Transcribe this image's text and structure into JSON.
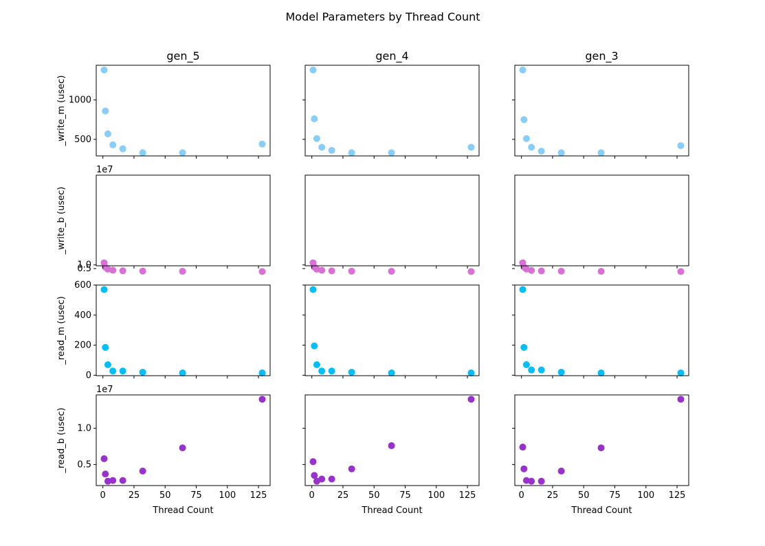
{
  "suptitle": "Model Parameters by Thread Count",
  "x_label": "Thread Count",
  "columns": [
    "gen_5",
    "gen_4",
    "gen_3"
  ],
  "row_labels": [
    "_write_m (usec)",
    "_write_b (usec)",
    "_read_m (usec)",
    "_read_b (usec)"
  ],
  "row_colors": [
    "#87cefa",
    "#da70d6",
    "#00bfff",
    "#9932cc"
  ],
  "x_ticks": [
    0,
    25,
    50,
    75,
    100,
    125
  ],
  "x_lim": [
    -5.35,
    134.35
  ],
  "rows": [
    {
      "ylim": [
        290,
        1440
      ],
      "ticks": [
        500,
        1000
      ],
      "tick_labels": [
        "500",
        "1000"
      ],
      "offset": ""
    },
    {
      "ylim": [
        8800000.0,
        132000000.0
      ],
      "ticks": [
        5000000.0,
        10000000.0
      ],
      "tick_labels": [
        "0.5",
        "1.0"
      ],
      "offset": "1e7"
    },
    {
      "ylim": [
        -3,
        600
      ],
      "ticks": [
        0,
        200,
        400,
        600
      ],
      "tick_labels": [
        "0",
        "200",
        "400",
        "600"
      ],
      "offset": ""
    },
    {
      "ylim": [
        2100000.0,
        14600000.0
      ],
      "ticks": [
        5000000.0,
        10000000.0
      ],
      "tick_labels": [
        "0.5",
        "1.0"
      ],
      "offset": "1e7"
    }
  ],
  "chart_data": [
    {
      "type": "scatter",
      "title": "gen_5",
      "row": "_write_m (usec)",
      "color": "#87cefa",
      "x": [
        1,
        2,
        4,
        8,
        16,
        32,
        64,
        128
      ],
      "y": [
        1380,
        860,
        570,
        430,
        380,
        330,
        330,
        440
      ]
    },
    {
      "type": "scatter",
      "title": "gen_4",
      "row": "_write_m (usec)",
      "color": "#87cefa",
      "x": [
        1,
        2,
        4,
        8,
        16,
        32,
        64,
        128
      ],
      "y": [
        1380,
        760,
        510,
        400,
        360,
        330,
        330,
        400
      ]
    },
    {
      "type": "scatter",
      "title": "gen_3",
      "row": "_write_m (usec)",
      "color": "#87cefa",
      "x": [
        1,
        2,
        4,
        8,
        16,
        32,
        64,
        128
      ],
      "y": [
        1380,
        750,
        510,
        400,
        350,
        330,
        330,
        420
      ]
    },
    {
      "type": "scatter",
      "title": "gen_5",
      "row": "_write_b (usec)",
      "color": "#da70d6",
      "x": [
        1,
        2,
        4,
        8,
        16,
        32,
        64,
        128
      ],
      "y": [
        12800000,
        6800000,
        4200000,
        2800000,
        2000000,
        1600000,
        1300000,
        1000000
      ]
    },
    {
      "type": "scatter",
      "title": "gen_4",
      "row": "_write_b (usec)",
      "color": "#da70d6",
      "x": [
        1,
        2,
        4,
        8,
        16,
        32,
        64,
        128
      ],
      "y": [
        12800000,
        7000000,
        4100000,
        2700000,
        1900000,
        1500000,
        1300000,
        1000000
      ]
    },
    {
      "type": "scatter",
      "title": "gen_3",
      "row": "_write_b (usec)",
      "color": "#da70d6",
      "x": [
        1,
        2,
        4,
        8,
        16,
        32,
        64,
        128
      ],
      "y": [
        12800000,
        7100000,
        4300000,
        2500000,
        1800000,
        1500000,
        1200000,
        1000000
      ]
    },
    {
      "type": "scatter",
      "title": "gen_5",
      "row": "_read_m (usec)",
      "color": "#00bfff",
      "x": [
        1,
        2,
        4,
        8,
        16,
        32,
        64,
        128
      ],
      "y": [
        570,
        185,
        70,
        28,
        28,
        20,
        15,
        15
      ]
    },
    {
      "type": "scatter",
      "title": "gen_4",
      "row": "_read_m (usec)",
      "color": "#00bfff",
      "x": [
        1,
        2,
        4,
        8,
        16,
        32,
        64,
        128
      ],
      "y": [
        570,
        195,
        70,
        28,
        28,
        20,
        15,
        15
      ]
    },
    {
      "type": "scatter",
      "title": "gen_3",
      "row": "_read_m (usec)",
      "color": "#00bfff",
      "x": [
        1,
        2,
        4,
        8,
        16,
        32,
        64,
        128
      ],
      "y": [
        570,
        185,
        70,
        35,
        35,
        20,
        15,
        15
      ]
    },
    {
      "type": "scatter",
      "title": "gen_5",
      "row": "_read_b (usec)",
      "color": "#9932cc",
      "x": [
        1,
        2,
        4,
        8,
        16,
        32,
        64,
        128
      ],
      "y": [
        5800000,
        3700000,
        2700000,
        2800000,
        2800000,
        4100000,
        7300000,
        14000000
      ]
    },
    {
      "type": "scatter",
      "title": "gen_4",
      "row": "_read_b (usec)",
      "color": "#9932cc",
      "x": [
        1,
        2,
        4,
        8,
        16,
        32,
        64,
        128
      ],
      "y": [
        5400000,
        3500000,
        2700000,
        3000000,
        3000000,
        4400000,
        7600000,
        14000000
      ]
    },
    {
      "type": "scatter",
      "title": "gen_3",
      "row": "_read_b (usec)",
      "color": "#9932cc",
      "x": [
        1,
        2,
        4,
        8,
        16,
        32,
        64,
        128
      ],
      "y": [
        7400000,
        4400000,
        2800000,
        2700000,
        2700000,
        4100000,
        7300000,
        14000000
      ]
    }
  ]
}
